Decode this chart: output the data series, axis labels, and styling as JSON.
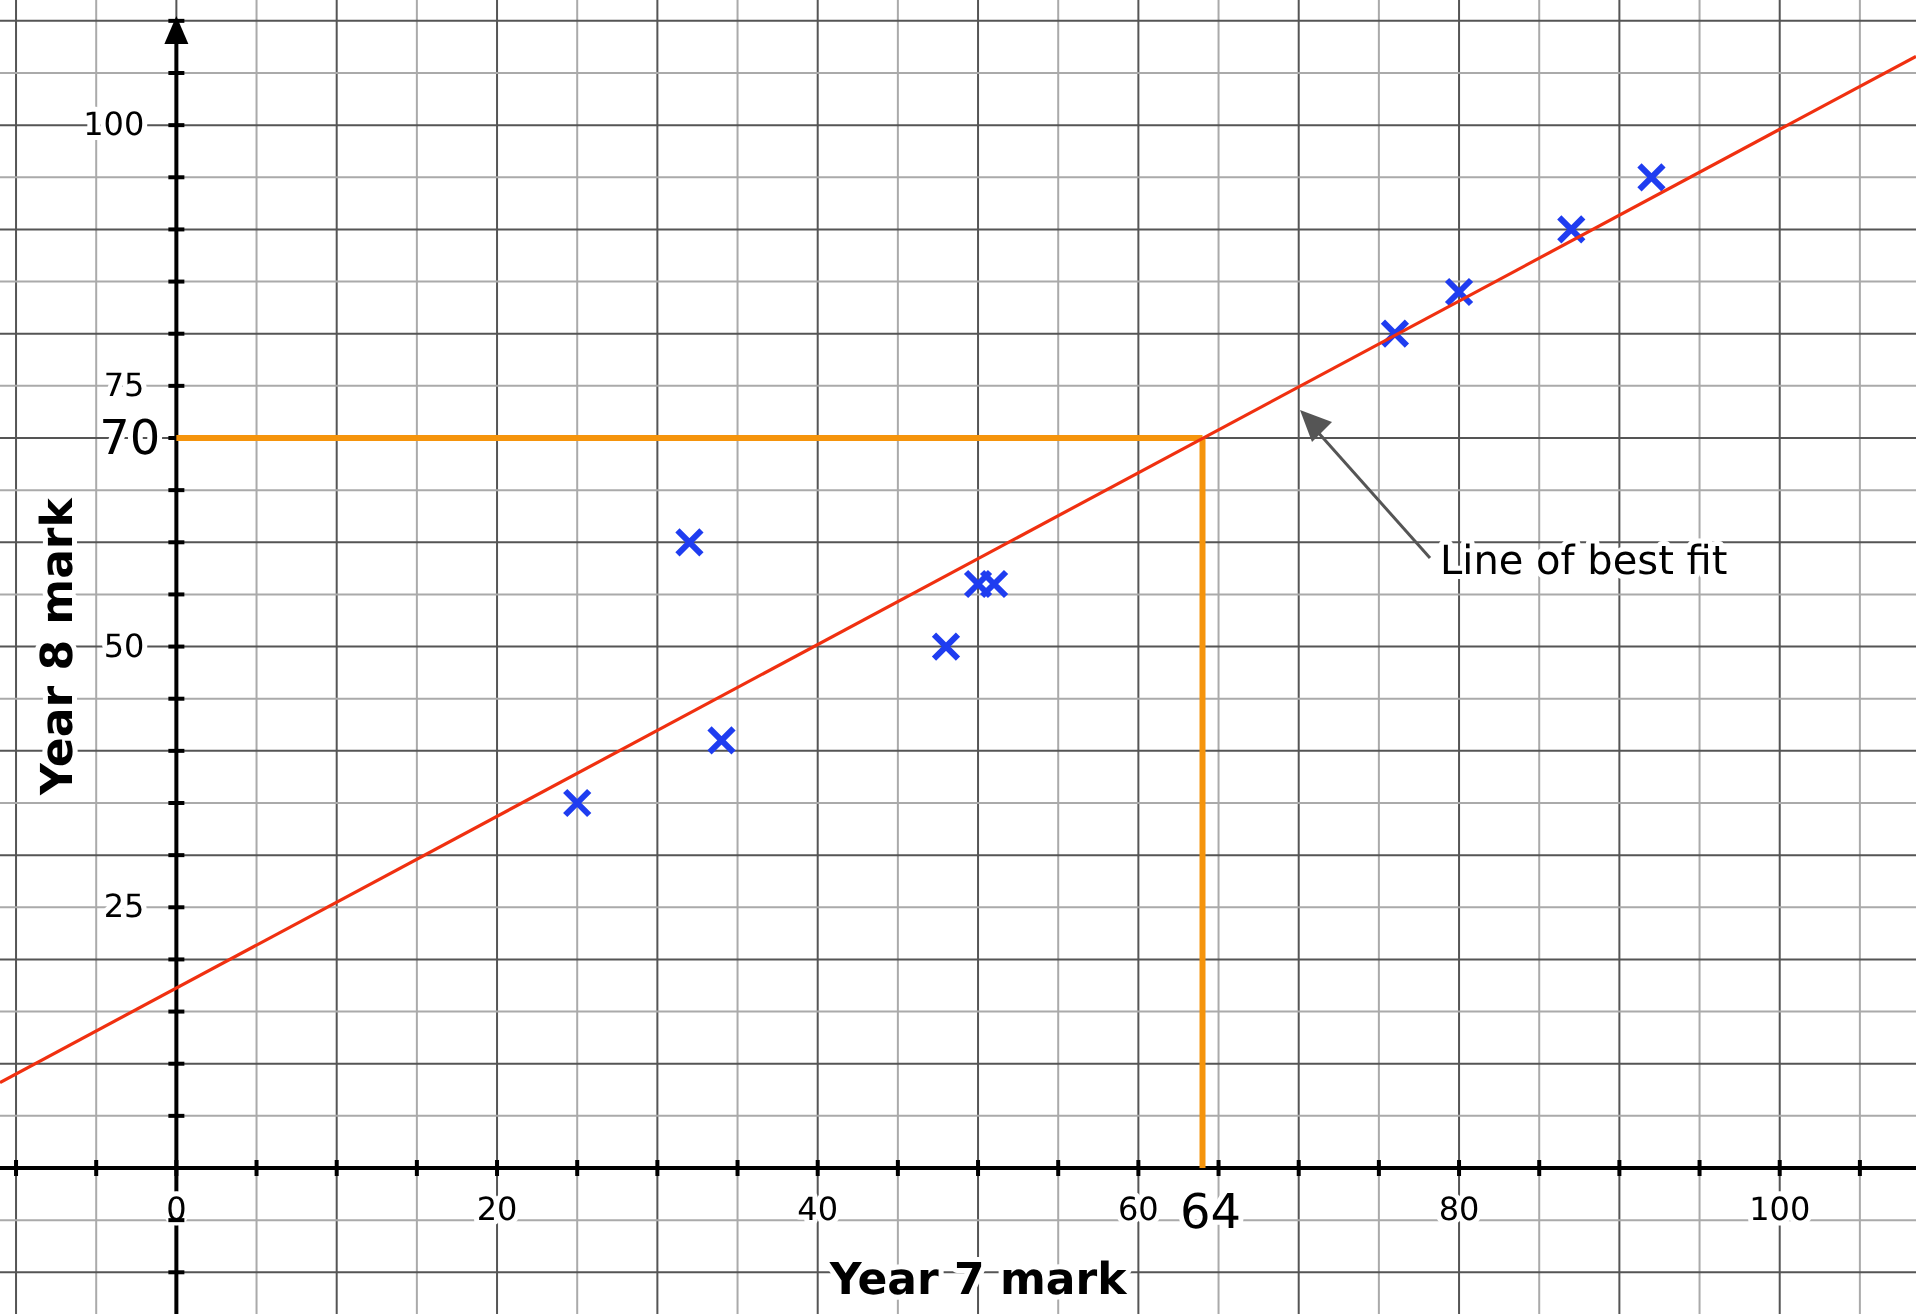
{
  "chart_data": {
    "type": "scatter",
    "xlabel": "Year 7 mark",
    "ylabel": "Year 8 mark",
    "xlim": [
      -11,
      108.5
    ],
    "ylim": [
      -14,
      112
    ],
    "xticks": [
      {
        "value": -10,
        "label": null
      },
      {
        "value": -5,
        "label": null
      },
      0,
      {
        "value": 5,
        "label": null
      },
      {
        "value": 10,
        "label": null
      },
      {
        "value": 15,
        "label": null
      },
      20,
      {
        "value": 25,
        "label": null
      },
      {
        "value": 30,
        "label": null
      },
      {
        "value": 35,
        "label": null
      },
      40,
      {
        "value": 45,
        "label": null
      },
      {
        "value": 50,
        "label": null
      },
      {
        "value": 55,
        "label": null
      },
      60,
      {
        "value": 65,
        "label": null
      },
      {
        "value": 70,
        "label": null
      },
      {
        "value": 75,
        "label": null
      },
      80,
      {
        "value": 85,
        "label": null
      },
      {
        "value": 90,
        "label": null
      },
      {
        "value": 95,
        "label": null
      },
      100,
      {
        "value": 105,
        "label": null
      }
    ],
    "yticks": [
      {
        "value": -10,
        "label": null
      },
      {
        "value": -5,
        "label": null
      },
      {
        "value": 5,
        "label": null
      },
      {
        "value": 10,
        "label": null
      },
      {
        "value": 15,
        "label": null
      },
      {
        "value": 20,
        "label": null
      },
      25,
      {
        "value": 30,
        "label": null
      },
      {
        "value": 35,
        "label": null
      },
      {
        "value": 40,
        "label": null
      },
      {
        "value": 45,
        "label": null
      },
      50,
      {
        "value": 55,
        "label": null
      },
      {
        "value": 60,
        "label": null
      },
      {
        "value": 65,
        "label": null
      },
      {
        "value": 70,
        "label": null
      },
      75,
      {
        "value": 80,
        "label": null
      },
      {
        "value": 85,
        "label": null
      },
      {
        "value": 90,
        "label": null
      },
      {
        "value": 95,
        "label": null
      },
      100,
      {
        "value": 105,
        "label": null
      },
      {
        "value": 110,
        "label": null
      }
    ],
    "grid": true,
    "marker": "cross",
    "series": [
      {
        "color": "#1f3df0",
        "x": [
          25,
          32,
          34,
          48,
          50,
          51,
          76,
          80,
          87,
          92
        ],
        "values": [
          35,
          60,
          41,
          50,
          56,
          56,
          80,
          84,
          90,
          95
        ]
      },
      {
        "type": "line",
        "color": "#f03010",
        "marker": "none",
        "x": [
          -11,
          108.5
        ],
        "values": [
          8.2,
          106.6
        ]
      }
    ],
    "ref_lines": [
      {
        "axis": "x",
        "value": 64,
        "label": "64",
        "color": "#f5940c"
      },
      {
        "axis": "y",
        "value": 70,
        "label": "70",
        "color": "#f5940c"
      }
    ],
    "annotations": [
      "Line of best fit"
    ]
  }
}
